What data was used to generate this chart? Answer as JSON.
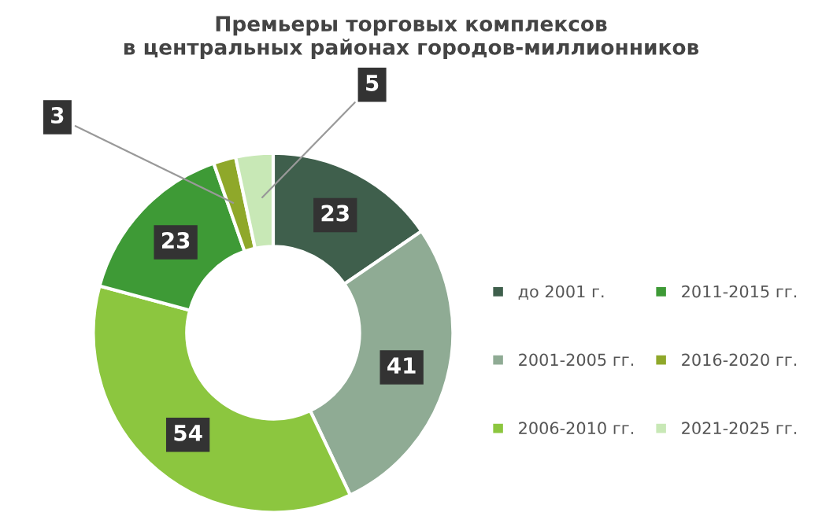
{
  "chart_data": {
    "type": "donut",
    "title": "Премьеры торговых комплексов\nв центральных районах городов-миллионников",
    "categories": [
      "до 2001 г.",
      "2001-2005 гг.",
      "2006-2010 гг.",
      "2011-2015 гг.",
      "2016-2020 гг.",
      "2021-2025 гг."
    ],
    "values": [
      23,
      41,
      54,
      23,
      3,
      5
    ],
    "colors": [
      "#3f5f4c",
      "#8fab94",
      "#8cc63f",
      "#3e9a36",
      "#8fa82a",
      "#c8e8b6"
    ],
    "data_labels": true,
    "legend": "right"
  }
}
